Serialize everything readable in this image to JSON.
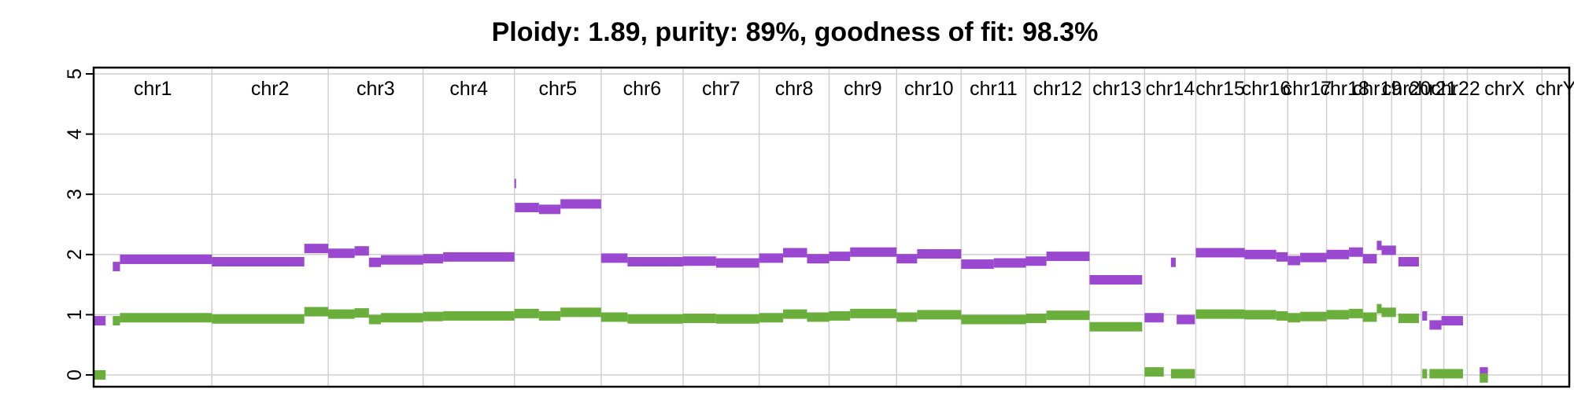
{
  "colors": {
    "major": "#9a48cf",
    "minor": "#6aaf3c",
    "grid": "#d0d0d0"
  },
  "chart_data": {
    "type": "scatter",
    "title": "Ploidy: 1.89, purity: 89%, goodness of fit: 98.3%",
    "xlabel": "",
    "ylabel": "",
    "ylim": [
      0,
      5
    ],
    "yticks": [
      0,
      1,
      2,
      3,
      4,
      5
    ],
    "grid": true,
    "legend": "none",
    "chromosomes": [
      {
        "name": "chr1",
        "start": 0,
        "end": 247
      },
      {
        "name": "chr2",
        "start": 247,
        "end": 490
      },
      {
        "name": "chr3",
        "start": 490,
        "end": 688
      },
      {
        "name": "chr4",
        "start": 688,
        "end": 879
      },
      {
        "name": "chr5",
        "start": 879,
        "end": 1060
      },
      {
        "name": "chr6",
        "start": 1060,
        "end": 1231
      },
      {
        "name": "chr7",
        "start": 1231,
        "end": 1390
      },
      {
        "name": "chr8",
        "start": 1390,
        "end": 1536
      },
      {
        "name": "chr9",
        "start": 1536,
        "end": 1677
      },
      {
        "name": "chr10",
        "start": 1677,
        "end": 1812
      },
      {
        "name": "chr11",
        "start": 1812,
        "end": 1947
      },
      {
        "name": "chr12",
        "start": 1947,
        "end": 2080
      },
      {
        "name": "chr13",
        "start": 2080,
        "end": 2195
      },
      {
        "name": "chr14",
        "start": 2195,
        "end": 2302
      },
      {
        "name": "chr15",
        "start": 2302,
        "end": 2404
      },
      {
        "name": "chr16",
        "start": 2404,
        "end": 2494
      },
      {
        "name": "chr17",
        "start": 2494,
        "end": 2575
      },
      {
        "name": "chr18",
        "start": 2575,
        "end": 2651
      },
      {
        "name": "chr19",
        "start": 2651,
        "end": 2711
      },
      {
        "name": "chr20",
        "start": 2711,
        "end": 2773
      },
      {
        "name": "chr21",
        "start": 2773,
        "end": 2820
      },
      {
        "name": "chr22",
        "start": 2820,
        "end": 2869
      },
      {
        "name": "chrX",
        "start": 2869,
        "end": 3025
      },
      {
        "name": "chrY",
        "start": 3025,
        "end": 3082
      }
    ],
    "series": [
      {
        "segments": [
          {
            "x0": 0,
            "x1": 25,
            "y": 0.9
          },
          {
            "x0": 40,
            "x1": 55,
            "y": 1.8
          },
          {
            "x0": 55,
            "x1": 247,
            "y": 1.92
          },
          {
            "x0": 247,
            "x1": 440,
            "y": 1.88
          },
          {
            "x0": 440,
            "x1": 490,
            "y": 2.1
          },
          {
            "x0": 490,
            "x1": 545,
            "y": 2.02
          },
          {
            "x0": 545,
            "x1": 575,
            "y": 2.06
          },
          {
            "x0": 575,
            "x1": 600,
            "y": 1.87
          },
          {
            "x0": 600,
            "x1": 688,
            "y": 1.91
          },
          {
            "x0": 688,
            "x1": 730,
            "y": 1.93
          },
          {
            "x0": 730,
            "x1": 879,
            "y": 1.96
          },
          {
            "x0": 879,
            "x1": 880,
            "y": 3.18
          },
          {
            "x0": 880,
            "x1": 930,
            "y": 2.78
          },
          {
            "x0": 930,
            "x1": 975,
            "y": 2.75
          },
          {
            "x0": 975,
            "x1": 1060,
            "y": 2.84
          },
          {
            "x0": 1060,
            "x1": 1115,
            "y": 1.94
          },
          {
            "x0": 1115,
            "x1": 1231,
            "y": 1.88
          },
          {
            "x0": 1231,
            "x1": 1300,
            "y": 1.89
          },
          {
            "x0": 1300,
            "x1": 1390,
            "y": 1.86
          },
          {
            "x0": 1390,
            "x1": 1440,
            "y": 1.94
          },
          {
            "x0": 1440,
            "x1": 1490,
            "y": 2.03
          },
          {
            "x0": 1490,
            "x1": 1536,
            "y": 1.93
          },
          {
            "x0": 1536,
            "x1": 1580,
            "y": 1.97
          },
          {
            "x0": 1580,
            "x1": 1677,
            "y": 2.04
          },
          {
            "x0": 1677,
            "x1": 1720,
            "y": 1.93
          },
          {
            "x0": 1720,
            "x1": 1812,
            "y": 2.01
          },
          {
            "x0": 1812,
            "x1": 1880,
            "y": 1.84
          },
          {
            "x0": 1880,
            "x1": 1947,
            "y": 1.86
          },
          {
            "x0": 1947,
            "x1": 1990,
            "y": 1.89
          },
          {
            "x0": 1990,
            "x1": 2080,
            "y": 1.97
          },
          {
            "x0": 2080,
            "x1": 2190,
            "y": 1.58
          },
          {
            "x0": 2195,
            "x1": 2235,
            "y": 0.95
          },
          {
            "x0": 2250,
            "x1": 2260,
            "y": 1.87
          },
          {
            "x0": 2262,
            "x1": 2300,
            "y": 0.92
          },
          {
            "x0": 2302,
            "x1": 2404,
            "y": 2.03
          },
          {
            "x0": 2404,
            "x1": 2470,
            "y": 2.0
          },
          {
            "x0": 2470,
            "x1": 2494,
            "y": 1.96
          },
          {
            "x0": 2494,
            "x1": 2520,
            "y": 1.9
          },
          {
            "x0": 2520,
            "x1": 2575,
            "y": 1.95
          },
          {
            "x0": 2575,
            "x1": 2622,
            "y": 2.0
          },
          {
            "x0": 2622,
            "x1": 2651,
            "y": 2.04
          },
          {
            "x0": 2651,
            "x1": 2680,
            "y": 1.93
          },
          {
            "x0": 2680,
            "x1": 2690,
            "y": 2.15
          },
          {
            "x0": 2690,
            "x1": 2720,
            "y": 2.07
          },
          {
            "x0": 2725,
            "x1": 2768,
            "y": 1.88
          },
          {
            "x0": 2775,
            "x1": 2785,
            "y": 0.98
          },
          {
            "x0": 2790,
            "x1": 2815,
            "y": 0.83
          },
          {
            "x0": 2815,
            "x1": 2860,
            "y": 0.9
          },
          {
            "x0": 2895,
            "x1": 2912,
            "y": 0.05
          }
        ]
      },
      {
        "segments": [
          {
            "x0": 0,
            "x1": 25,
            "y": 0.0
          },
          {
            "x0": 40,
            "x1": 55,
            "y": 0.9
          },
          {
            "x0": 55,
            "x1": 247,
            "y": 0.95
          },
          {
            "x0": 247,
            "x1": 440,
            "y": 0.93
          },
          {
            "x0": 440,
            "x1": 490,
            "y": 1.05
          },
          {
            "x0": 490,
            "x1": 545,
            "y": 1.01
          },
          {
            "x0": 545,
            "x1": 575,
            "y": 1.03
          },
          {
            "x0": 575,
            "x1": 600,
            "y": 0.92
          },
          {
            "x0": 600,
            "x1": 688,
            "y": 0.95
          },
          {
            "x0": 688,
            "x1": 730,
            "y": 0.97
          },
          {
            "x0": 730,
            "x1": 879,
            "y": 0.98
          },
          {
            "x0": 879,
            "x1": 930,
            "y": 1.02
          },
          {
            "x0": 930,
            "x1": 975,
            "y": 0.98
          },
          {
            "x0": 975,
            "x1": 1060,
            "y": 1.04
          },
          {
            "x0": 1060,
            "x1": 1115,
            "y": 0.96
          },
          {
            "x0": 1115,
            "x1": 1231,
            "y": 0.93
          },
          {
            "x0": 1231,
            "x1": 1300,
            "y": 0.94
          },
          {
            "x0": 1300,
            "x1": 1390,
            "y": 0.93
          },
          {
            "x0": 1390,
            "x1": 1440,
            "y": 0.95
          },
          {
            "x0": 1440,
            "x1": 1490,
            "y": 1.01
          },
          {
            "x0": 1490,
            "x1": 1536,
            "y": 0.96
          },
          {
            "x0": 1536,
            "x1": 1580,
            "y": 0.98
          },
          {
            "x0": 1580,
            "x1": 1677,
            "y": 1.02
          },
          {
            "x0": 1677,
            "x1": 1720,
            "y": 0.96
          },
          {
            "x0": 1720,
            "x1": 1812,
            "y": 1.0
          },
          {
            "x0": 1812,
            "x1": 1947,
            "y": 0.92
          },
          {
            "x0": 1947,
            "x1": 1990,
            "y": 0.94
          },
          {
            "x0": 1990,
            "x1": 2080,
            "y": 0.99
          },
          {
            "x0": 2080,
            "x1": 2190,
            "y": 0.8
          },
          {
            "x0": 2195,
            "x1": 2235,
            "y": 0.05
          },
          {
            "x0": 2250,
            "x1": 2300,
            "y": 0.02
          },
          {
            "x0": 2302,
            "x1": 2404,
            "y": 1.01
          },
          {
            "x0": 2404,
            "x1": 2470,
            "y": 1.0
          },
          {
            "x0": 2470,
            "x1": 2494,
            "y": 0.98
          },
          {
            "x0": 2494,
            "x1": 2520,
            "y": 0.95
          },
          {
            "x0": 2520,
            "x1": 2575,
            "y": 0.97
          },
          {
            "x0": 2575,
            "x1": 2622,
            "y": 1.0
          },
          {
            "x0": 2622,
            "x1": 2651,
            "y": 1.02
          },
          {
            "x0": 2651,
            "x1": 2680,
            "y": 0.96
          },
          {
            "x0": 2680,
            "x1": 2690,
            "y": 1.1
          },
          {
            "x0": 2690,
            "x1": 2720,
            "y": 1.04
          },
          {
            "x0": 2725,
            "x1": 2768,
            "y": 0.94
          },
          {
            "x0": 2775,
            "x1": 2785,
            "y": 0.02
          },
          {
            "x0": 2790,
            "x1": 2860,
            "y": 0.02
          },
          {
            "x0": 2895,
            "x1": 2912,
            "y": -0.05
          }
        ]
      }
    ]
  }
}
